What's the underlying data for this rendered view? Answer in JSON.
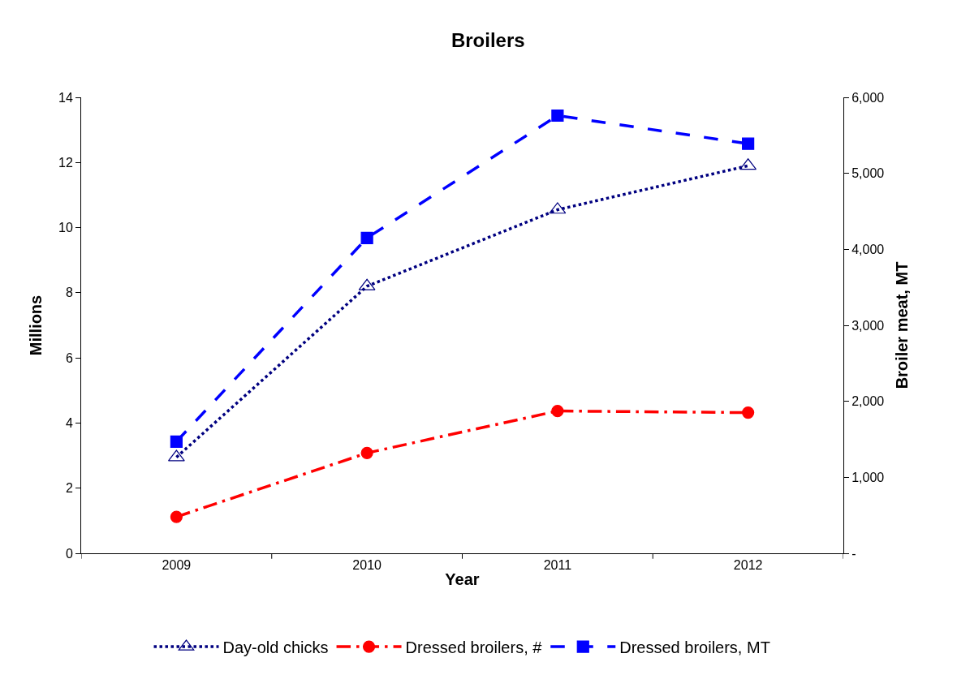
{
  "chart_data": {
    "type": "line",
    "title": "Broilers",
    "xlabel": "Year",
    "ylabel": "Millions",
    "y2label": "Broiler meat, MT",
    "categories": [
      "2009",
      "2010",
      "2011",
      "2012"
    ],
    "series": [
      {
        "name": "Day-old chicks",
        "color": "#000080",
        "values": [
          2.95,
          8.2,
          10.55,
          11.9
        ],
        "marker": "triangle",
        "line_style": "dotted"
      },
      {
        "name": "Dressed broilers, #",
        "color": "#ff0000",
        "values": [
          1.12,
          3.08,
          4.37,
          4.32
        ],
        "marker": "circle",
        "line_style": "dashdot"
      },
      {
        "name": "Dressed broilers, MT",
        "color": "#0000ff",
        "values": [
          1470,
          4150,
          5760,
          5390
        ],
        "marker": "square",
        "line_style": "dashed",
        "axis": "y2"
      }
    ],
    "ylim": [
      0,
      14
    ],
    "yticks": [
      0,
      2,
      4,
      6,
      8,
      10,
      12,
      14
    ],
    "y2lim": [
      0,
      6000
    ],
    "y2ticks": [
      {
        "value": 0,
        "label": "-"
      },
      {
        "value": 1000,
        "label": "1,000"
      },
      {
        "value": 2000,
        "label": "2,000"
      },
      {
        "value": 3000,
        "label": "3,000"
      },
      {
        "value": 4000,
        "label": "4,000"
      },
      {
        "value": 5000,
        "label": "5,000"
      },
      {
        "value": 6000,
        "label": "6,000"
      }
    ],
    "legend": "bottom"
  }
}
